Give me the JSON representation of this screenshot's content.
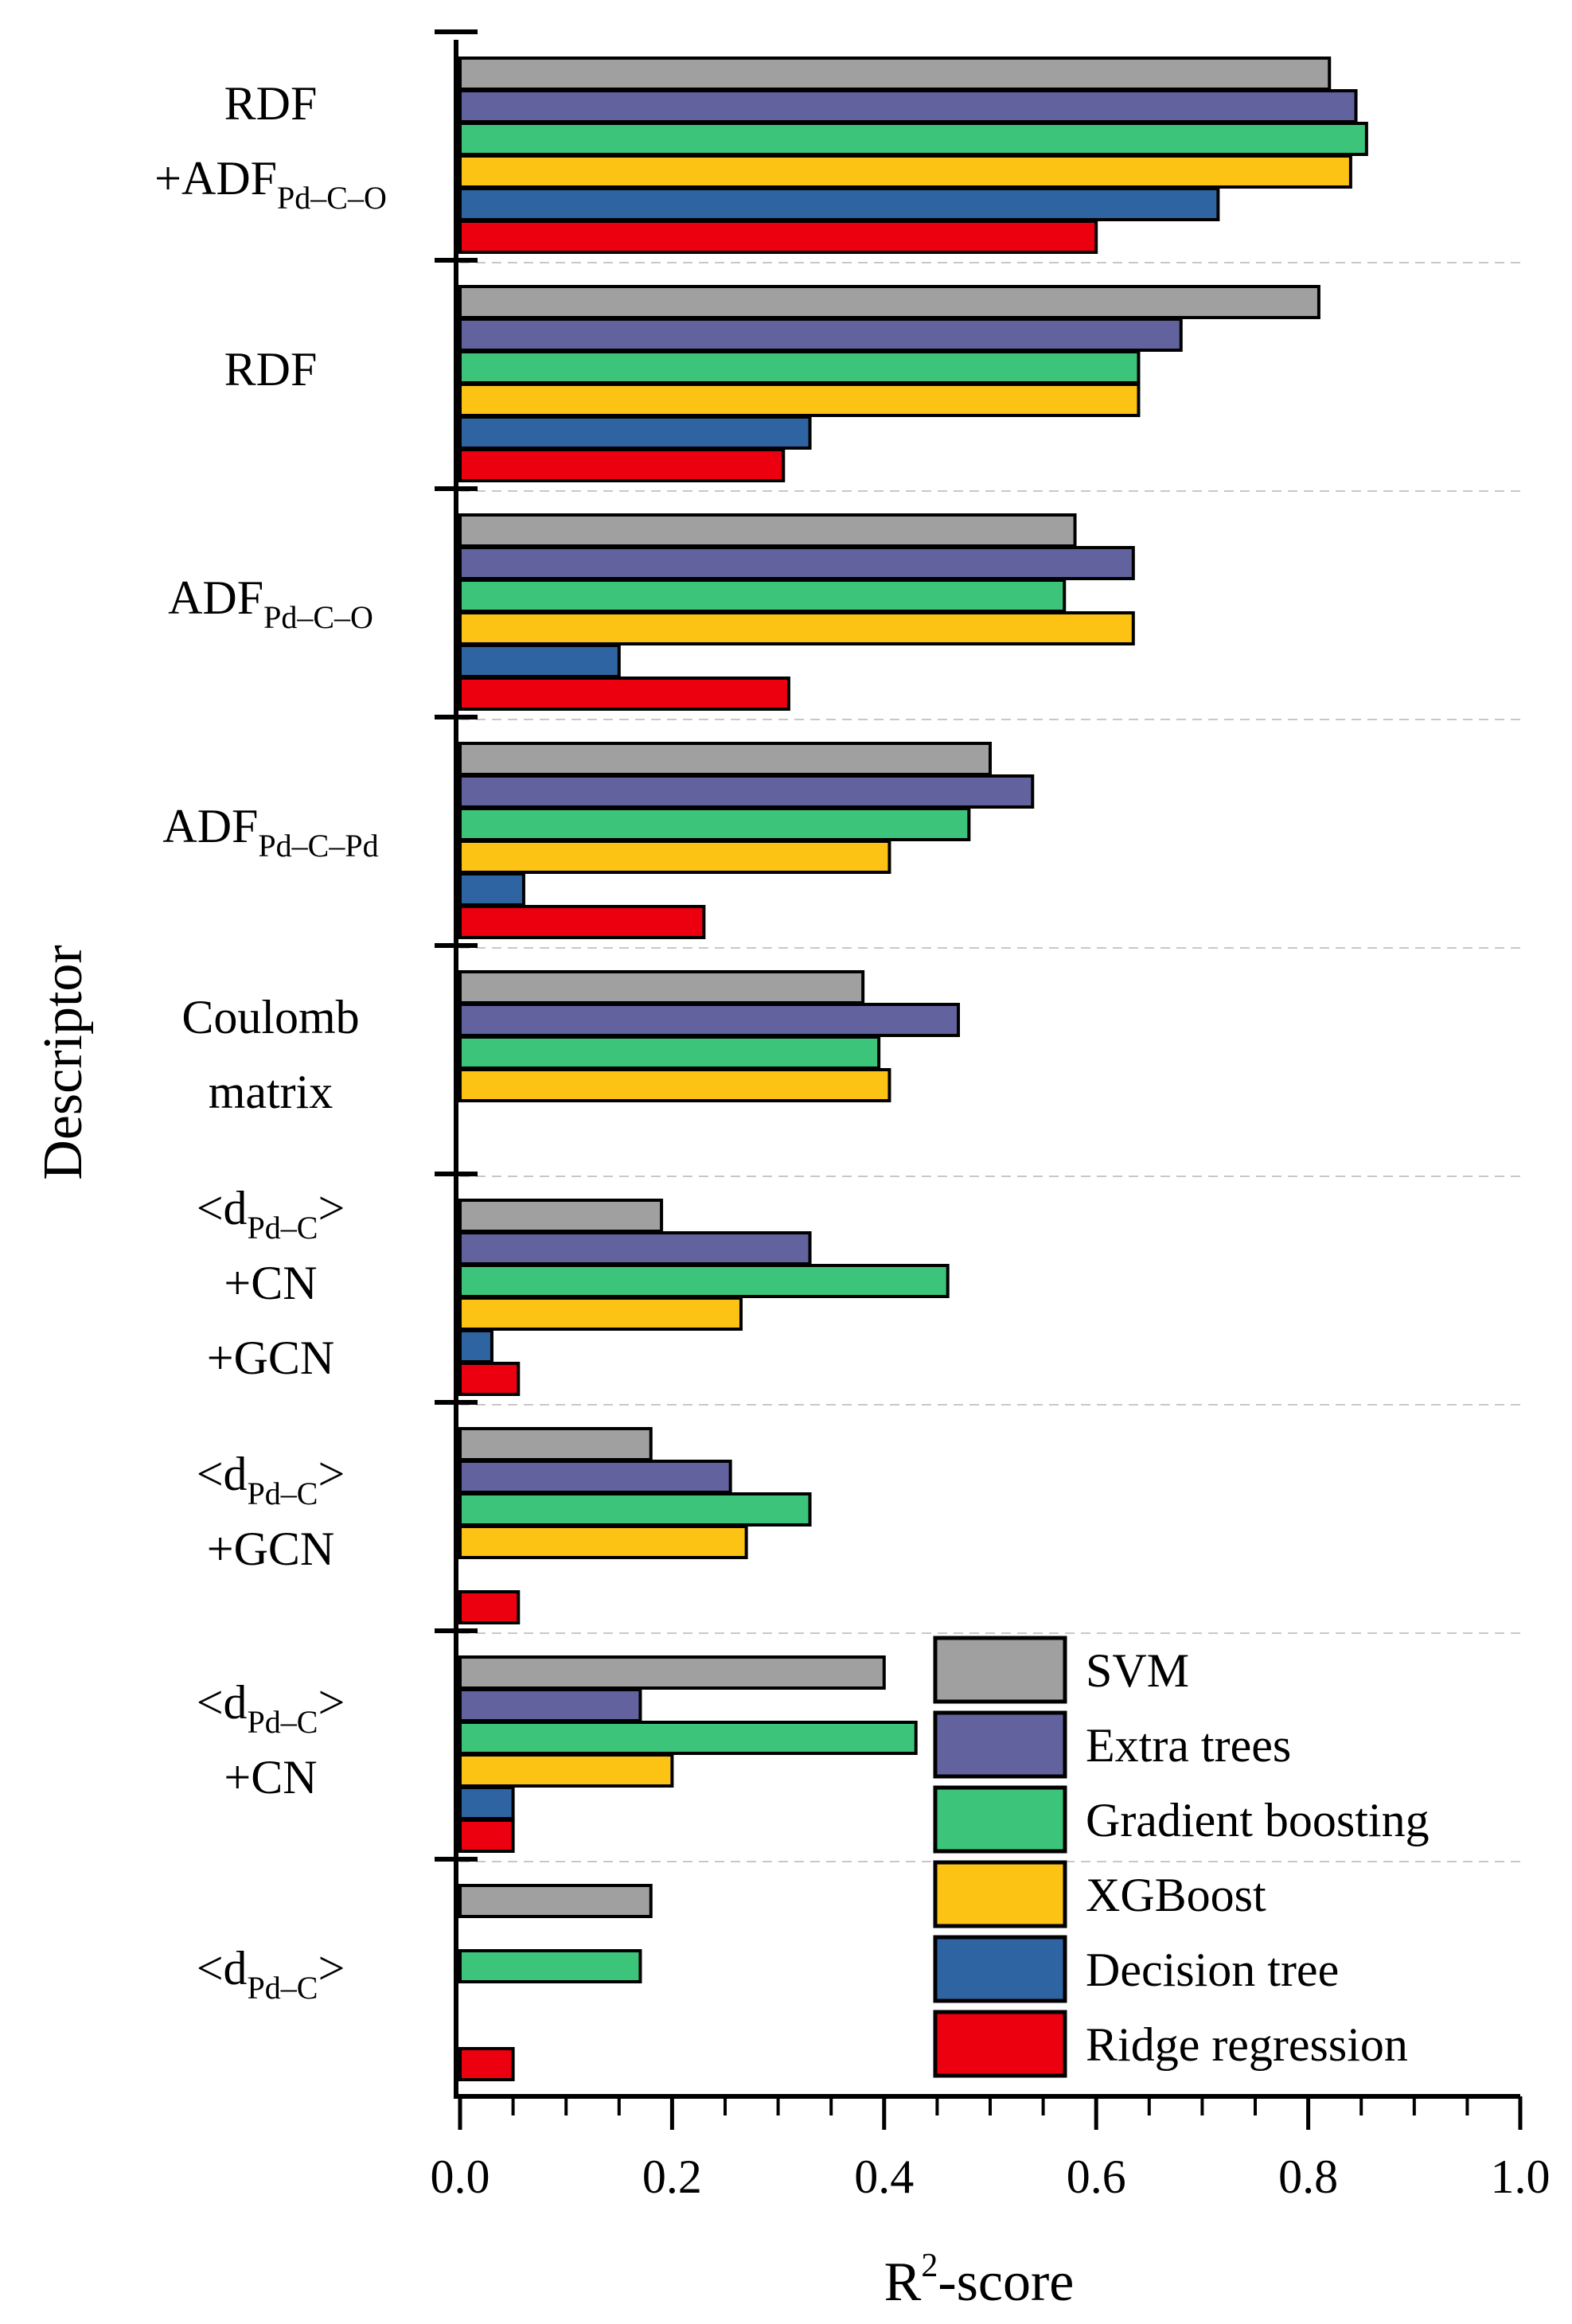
{
  "chart_data": {
    "type": "bar",
    "orientation": "horizontal",
    "xlabel": "R",
    "xlabel_sup": "2",
    "xlabel_suffix": "-score",
    "ylabel": "Descriptor",
    "xlim": [
      0.0,
      1.0
    ],
    "xticks": [
      "0.0",
      "0.2",
      "0.4",
      "0.6",
      "0.8",
      "1.0"
    ],
    "legend_position": "bottom-right",
    "categories": [
      {
        "lines": [
          {
            "text": "RDF"
          },
          {
            "text": "+ADF",
            "sub": "Pd–C–O"
          }
        ]
      },
      {
        "lines": [
          {
            "text": "RDF"
          }
        ]
      },
      {
        "lines": [
          {
            "text": "ADF",
            "sub": "Pd–C–O"
          }
        ]
      },
      {
        "lines": [
          {
            "text": "ADF",
            "sub": "Pd–C–Pd"
          }
        ]
      },
      {
        "lines": [
          {
            "text": "Coulomb"
          },
          {
            "text": "matrix"
          }
        ]
      },
      {
        "lines": [
          {
            "text": "<d",
            "sub": "Pd–C",
            "after": ">"
          },
          {
            "text": "+CN"
          },
          {
            "text": "+GCN"
          }
        ]
      },
      {
        "lines": [
          {
            "text": "<d",
            "sub": "Pd–C",
            "after": ">"
          },
          {
            "text": "+GCN"
          }
        ]
      },
      {
        "lines": [
          {
            "text": "<d",
            "sub": "Pd–C",
            "after": ">"
          },
          {
            "text": "+CN"
          }
        ]
      },
      {
        "lines": [
          {
            "text": "<d",
            "sub": "Pd–C",
            "after": ">"
          }
        ]
      }
    ],
    "series": [
      {
        "name": "SVM",
        "color": "#a0a0a0",
        "values": [
          0.82,
          0.81,
          0.58,
          0.5,
          0.38,
          0.19,
          0.18,
          0.4,
          0.18
        ]
      },
      {
        "name": "Extra trees",
        "color": "#62629e",
        "values": [
          0.845,
          0.68,
          0.635,
          0.54,
          0.47,
          0.33,
          0.255,
          0.17,
          null
        ]
      },
      {
        "name": "Gradient boosting",
        "color": "#3cc47a",
        "values": [
          0.855,
          0.64,
          0.57,
          0.48,
          0.395,
          0.46,
          0.33,
          0.43,
          0.17
        ]
      },
      {
        "name": "XGBoost",
        "color": "#fcc314",
        "values": [
          0.84,
          0.64,
          0.635,
          0.405,
          0.405,
          0.265,
          0.27,
          0.2,
          null
        ]
      },
      {
        "name": "Decision tree",
        "color": "#2f64a2",
        "values": [
          0.715,
          0.33,
          0.15,
          0.06,
          null,
          0.03,
          null,
          0.05,
          null
        ]
      },
      {
        "name": "Ridge regression",
        "color": "#ec0010",
        "values": [
          0.6,
          0.305,
          0.31,
          0.23,
          null,
          0.055,
          0.055,
          0.05,
          0.05
        ]
      }
    ]
  }
}
